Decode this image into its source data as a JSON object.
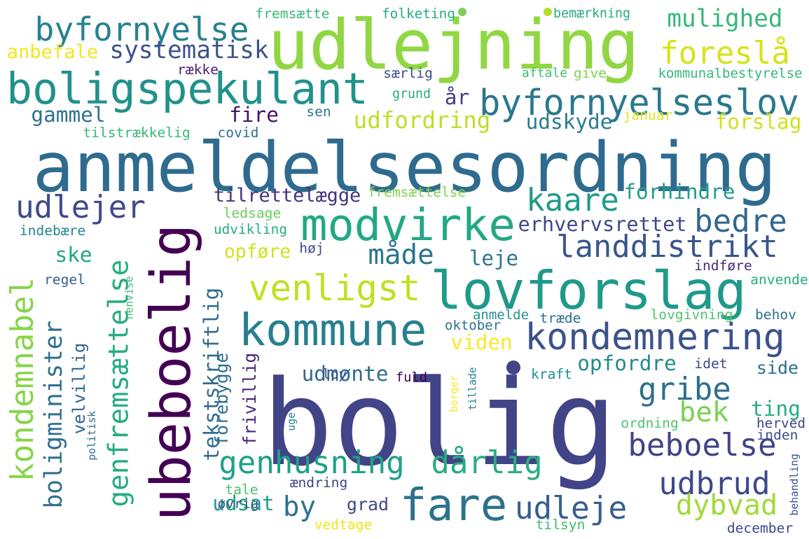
{
  "words": [
    {
      "text": "bolig",
      "color": "#414487"
    },
    {
      "text": "anmeldelsesordning",
      "color": "#2f6b8e"
    },
    {
      "text": "udlejning",
      "color": "#90d743"
    },
    {
      "text": "ubeboelig",
      "color": "#440154"
    },
    {
      "text": "lovforslag",
      "color": "#1f9a8a"
    },
    {
      "text": "boligspekulant",
      "color": "#21918c"
    },
    {
      "text": "modvirke",
      "color": "#22a884"
    },
    {
      "text": "kommune",
      "color": "#277f8e"
    },
    {
      "text": "fare",
      "color": "#2c728e"
    },
    {
      "text": "udleje",
      "color": "#355f8d"
    },
    {
      "text": "byfornyelse",
      "color": "#26828e"
    },
    {
      "text": "byfornyelseslov",
      "color": "#2a788e"
    },
    {
      "text": "venligst",
      "color": "#c2df23"
    },
    {
      "text": "kondemnering",
      "color": "#3b528b"
    },
    {
      "text": "genfremsættelse",
      "color": "#25ac82"
    },
    {
      "text": "kondemnabel",
      "color": "#86d549"
    },
    {
      "text": "boligminister",
      "color": "#2e6f8e"
    },
    {
      "text": "foreslå",
      "color": "#d8e219"
    },
    {
      "text": "genhusning",
      "color": "#1fa187"
    },
    {
      "text": "landdistrikt",
      "color": "#39568c"
    },
    {
      "text": "udlejer",
      "color": "#3e4a89"
    },
    {
      "text": "kaare",
      "color": "#1e9b8a"
    },
    {
      "text": "bedre",
      "color": "#31688e"
    },
    {
      "text": "gribe",
      "color": "#2d708e"
    },
    {
      "text": "beboelse",
      "color": "#414487"
    },
    {
      "text": "dårlig",
      "color": "#28ae80"
    },
    {
      "text": "udbrud",
      "color": "#3e4989"
    },
    {
      "text": "dybvad",
      "color": "#a0da39"
    },
    {
      "text": "by",
      "color": "#2c728e"
    },
    {
      "text": "måde",
      "color": "#2b758e"
    },
    {
      "text": "bek",
      "color": "#7ad151"
    },
    {
      "text": "systematisk",
      "color": "#3b528b"
    },
    {
      "text": "mulighed",
      "color": "#35b779"
    },
    {
      "text": "udfordring",
      "color": "#bddf26"
    },
    {
      "text": "tekstskriftlig",
      "color": "#2f6c8e"
    },
    {
      "text": "velvillig",
      "color": "#31668e"
    },
    {
      "text": "forebygge",
      "color": "#2e6e8e"
    },
    {
      "text": "frivillig",
      "color": "#482878"
    },
    {
      "text": "tilrettelægge",
      "color": "#46327e"
    },
    {
      "text": "erhvervsrettet",
      "color": "#3f4889"
    },
    {
      "text": "opfordre",
      "color": "#228c8d"
    },
    {
      "text": "udmønte",
      "color": "#31688e"
    },
    {
      "text": "viden",
      "color": "#fde725"
    },
    {
      "text": "forhindre",
      "color": "#1f9e89"
    },
    {
      "text": "anbefale",
      "color": "#f4e61e"
    },
    {
      "text": "gammel",
      "color": "#2c728e"
    },
    {
      "text": "fire",
      "color": "#471164"
    },
    {
      "text": "udskyde",
      "color": "#287c8e"
    },
    {
      "text": "forslag",
      "color": "#d0e11c"
    },
    {
      "text": "opføre",
      "color": "#d2e21b"
    },
    {
      "text": "leje",
      "color": "#2a768e"
    },
    {
      "text": "ske",
      "color": "#20a486"
    },
    {
      "text": "ting",
      "color": "#25ab82"
    },
    {
      "text": "side",
      "color": "#2c718e"
    },
    {
      "text": "grad",
      "color": "#3e4a89"
    },
    {
      "text": "udsat",
      "color": "#1fa088"
    },
    {
      "text": "år",
      "color": "#433e85"
    },
    {
      "text": "aftale",
      "color": "#40bd72"
    },
    {
      "text": "give",
      "color": "#7fd34e"
    },
    {
      "text": "særlig",
      "color": "#3d4e8a"
    },
    {
      "text": "grund",
      "color": "#26ad81"
    },
    {
      "text": "sen",
      "color": "#2a788e"
    },
    {
      "text": "kommunalbestyrelse",
      "color": "#35b779"
    },
    {
      "text": "januar",
      "color": "#e5e419"
    },
    {
      "text": "covid",
      "color": "#2c738e"
    },
    {
      "text": "tilstrækkelig",
      "color": "#37b878"
    },
    {
      "text": "række",
      "color": "#482475"
    },
    {
      "text": "fremsætte",
      "color": "#38b977"
    },
    {
      "text": "folketing",
      "color": "#25ac82"
    },
    {
      "text": "bemærkning",
      "color": "#25ac82"
    },
    {
      "text": "fremsættelse",
      "color": "#7fd34e"
    },
    {
      "text": "ledsage",
      "color": "#6ccd5a"
    },
    {
      "text": "indebære",
      "color": "#23888e"
    },
    {
      "text": "udvikling",
      "color": "#28ae80"
    },
    {
      "text": "høj",
      "color": "#3e4989"
    },
    {
      "text": "regel",
      "color": "#35608d"
    },
    {
      "text": "henvise",
      "color": "#3fbc73"
    },
    {
      "text": "indføre",
      "color": "#472d7b"
    },
    {
      "text": "anvende",
      "color": "#25ac82"
    },
    {
      "text": "behov",
      "color": "#2d718e"
    },
    {
      "text": "lovgivning",
      "color": "#50c46a"
    },
    {
      "text": "anmelde",
      "color": "#20928c"
    },
    {
      "text": "træde",
      "color": "#2e6e8e"
    },
    {
      "text": "oktober",
      "color": "#2d708e"
    },
    {
      "text": "lov",
      "color": "#3a538b"
    },
    {
      "text": "fuld",
      "color": "#440154"
    },
    {
      "text": "borger",
      "color": "#fde725"
    },
    {
      "text": "tillade",
      "color": "#26828e"
    },
    {
      "text": "kraft",
      "color": "#20928c"
    },
    {
      "text": "idet",
      "color": "#3e4989"
    },
    {
      "text": "politisk",
      "color": "#2c728e"
    },
    {
      "text": "uge",
      "color": "#26828e"
    },
    {
      "text": "ordning",
      "color": "#50c46a"
    },
    {
      "text": "herved",
      "color": "#404688"
    },
    {
      "text": "inden",
      "color": "#3d4e8a"
    },
    {
      "text": "behandling",
      "color": "#3b528b"
    },
    {
      "text": "tale",
      "color": "#4ac16d"
    },
    {
      "text": "ændring",
      "color": "#3f4889"
    },
    {
      "text": "øvrig",
      "color": "#3a548c"
    },
    {
      "text": "vedtage",
      "color": "#f1e51d"
    },
    {
      "text": "tilsyn",
      "color": "#3fbc73"
    },
    {
      "text": "december",
      "color": "#3e4a89"
    }
  ]
}
